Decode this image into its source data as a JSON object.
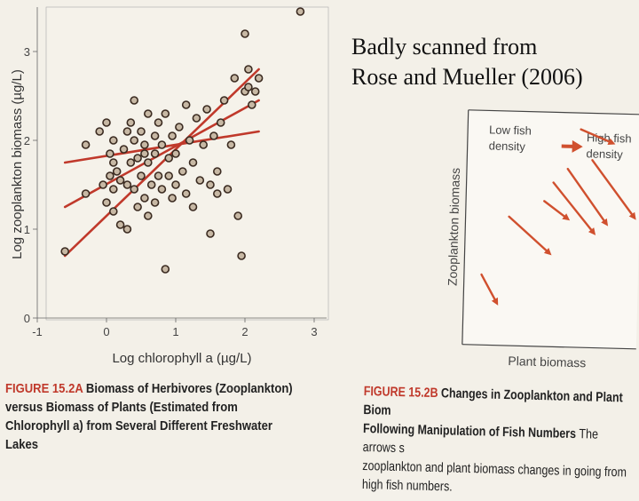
{
  "note": {
    "line1": "Badly scanned from",
    "line2": "Rose and Mueller (2006)"
  },
  "chart_data": [
    {
      "type": "scatter",
      "panel": "A",
      "title": "",
      "xlabel": "Log chlorophyll a (µg/L)",
      "ylabel": "Log zooplankton biomass (µg/L)",
      "xlim": [
        -1,
        3
      ],
      "ylim": [
        0,
        3.5
      ],
      "xticks": [
        "-1",
        "0",
        "1",
        "2",
        "3"
      ],
      "yticks": [
        "0",
        "1",
        "2",
        "3"
      ],
      "grid": false,
      "points": [
        [
          -0.6,
          0.75
        ],
        [
          -0.3,
          1.4
        ],
        [
          -0.3,
          1.95
        ],
        [
          -0.1,
          2.1
        ],
        [
          -0.05,
          1.5
        ],
        [
          0.0,
          2.2
        ],
        [
          0.05,
          1.85
        ],
        [
          0.0,
          1.3
        ],
        [
          0.05,
          1.6
        ],
        [
          0.1,
          2.0
        ],
        [
          0.1,
          1.75
        ],
        [
          0.15,
          1.65
        ],
        [
          0.1,
          1.2
        ],
        [
          0.2,
          1.55
        ],
        [
          0.25,
          1.9
        ],
        [
          0.3,
          2.1
        ],
        [
          0.3,
          1.5
        ],
        [
          0.35,
          2.2
        ],
        [
          0.35,
          1.75
        ],
        [
          0.4,
          2.0
        ],
        [
          0.4,
          1.45
        ],
        [
          0.4,
          2.45
        ],
        [
          0.45,
          1.8
        ],
        [
          0.45,
          1.25
        ],
        [
          0.5,
          2.1
        ],
        [
          0.5,
          1.6
        ],
        [
          0.55,
          1.95
        ],
        [
          0.55,
          1.35
        ],
        [
          0.6,
          1.75
        ],
        [
          0.6,
          2.3
        ],
        [
          0.6,
          1.15
        ],
        [
          0.65,
          1.5
        ],
        [
          0.7,
          2.05
        ],
        [
          0.7,
          1.85
        ],
        [
          0.75,
          1.6
        ],
        [
          0.75,
          2.2
        ],
        [
          0.8,
          1.45
        ],
        [
          0.8,
          1.95
        ],
        [
          0.85,
          0.55
        ],
        [
          0.85,
          2.3
        ],
        [
          0.9,
          1.8
        ],
        [
          0.9,
          1.6
        ],
        [
          0.95,
          2.05
        ],
        [
          1.0,
          1.5
        ],
        [
          1.0,
          1.85
        ],
        [
          1.05,
          2.15
        ],
        [
          1.1,
          1.65
        ],
        [
          1.15,
          2.4
        ],
        [
          1.15,
          1.4
        ],
        [
          1.2,
          2.0
        ],
        [
          1.25,
          1.75
        ],
        [
          1.3,
          2.25
        ],
        [
          1.35,
          1.55
        ],
        [
          1.4,
          1.95
        ],
        [
          1.45,
          2.35
        ],
        [
          1.5,
          1.5
        ],
        [
          1.5,
          0.95
        ],
        [
          1.55,
          2.05
        ],
        [
          1.6,
          1.65
        ],
        [
          1.65,
          2.2
        ],
        [
          1.7,
          2.45
        ],
        [
          1.75,
          1.45
        ],
        [
          1.8,
          1.95
        ],
        [
          1.85,
          2.7
        ],
        [
          1.9,
          1.15
        ],
        [
          1.95,
          0.7
        ],
        [
          2.0,
          2.55
        ],
        [
          2.05,
          2.6
        ],
        [
          2.0,
          3.2
        ],
        [
          2.05,
          2.8
        ],
        [
          2.1,
          2.4
        ],
        [
          2.15,
          2.55
        ],
        [
          2.2,
          2.7
        ],
        [
          2.8,
          3.45
        ],
        [
          0.2,
          1.05
        ],
        [
          0.3,
          1.0
        ],
        [
          0.55,
          1.85
        ],
        [
          0.95,
          1.35
        ],
        [
          1.25,
          1.25
        ],
        [
          1.6,
          1.4
        ],
        [
          0.1,
          1.45
        ],
        [
          0.7,
          1.3
        ]
      ],
      "fit_lines": [
        {
          "x": [
            -0.6,
            2.2
          ],
          "y": [
            1.75,
            2.1
          ]
        },
        {
          "x": [
            -0.6,
            2.2
          ],
          "y": [
            1.25,
            2.45
          ]
        },
        {
          "x": [
            -0.6,
            2.2
          ],
          "y": [
            0.7,
            2.8
          ]
        }
      ]
    },
    {
      "type": "diagram",
      "panel": "B",
      "xlabel": "Plant biomass",
      "ylabel": "Zooplankton biomass",
      "legend_from": "Low fish density",
      "legend_to": "High fish density",
      "arrows": [
        {
          "from": [
            0.1,
            0.3
          ],
          "to": [
            0.2,
            0.17
          ]
        },
        {
          "from": [
            0.25,
            0.55
          ],
          "to": [
            0.5,
            0.39
          ]
        },
        {
          "from": [
            0.45,
            0.62
          ],
          "to": [
            0.6,
            0.54
          ]
        },
        {
          "from": [
            0.5,
            0.7
          ],
          "to": [
            0.75,
            0.48
          ]
        },
        {
          "from": [
            0.58,
            0.76
          ],
          "to": [
            0.82,
            0.52
          ]
        },
        {
          "from": [
            0.72,
            0.8
          ],
          "to": [
            0.98,
            0.55
          ]
        },
        {
          "from": [
            0.65,
            0.93
          ],
          "to": [
            0.85,
            0.87
          ]
        }
      ]
    }
  ],
  "captionA": {
    "fig": "FIGURE 15.2A",
    "text": "Biomass of Herbivores (Zooplankton) versus Biomass of Plants (Estimated from Chlorophyll a) from Several Different Freshwater Lakes"
  },
  "captionB": {
    "fig": "FIGURE 15.2B",
    "bold": "Changes in Zooplankton and Plant Biom",
    "bold2": "Following Manipulation of Fish Numbers",
    "rest": "The arrows s",
    "rest2": "zooplankton and plant biomass changes in going from",
    "rest3": "high fish numbers."
  },
  "colors": {
    "line": "#c0392b",
    "arrow": "#d0502e",
    "point": "#3a2a20",
    "caption_fig": "#c0392b"
  }
}
